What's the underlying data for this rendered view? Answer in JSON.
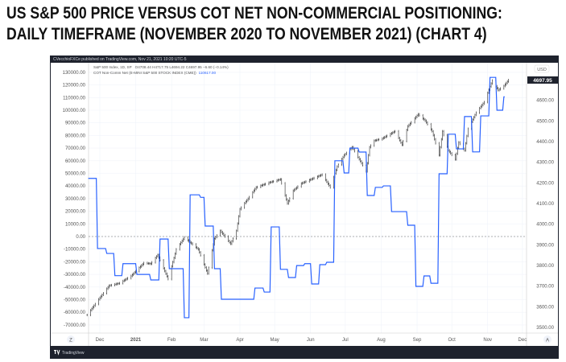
{
  "title_line1": "US S&P 500 PRICE VERSUS COT NET NON-COMMERCIAL POSITIONING:",
  "title_line2": "DAILY TIMEFRAME (NOVEMBER 2020 TO NOVEMBER 2021) (CHART 4)",
  "published": "CVecchioFXCe published on TradingView.com, Nov 21, 2021 10:20 UTC-5",
  "legend": {
    "price_name": "S&P 500 Index, 1D, SP",
    "price_ohlc": "O4708.44 H4717.75 L4694.22 C4697.95 −6.60 (−0.14%)",
    "cot_name": "COT Non-Comm Net (E-MINI S&P 500 STOCK INDEX (CME))",
    "cot_value": "110617.00"
  },
  "currency": "USD",
  "last_price_label": "4697.95",
  "footer_brand": "TradingView",
  "corner_left": "Z",
  "corner_right": "A",
  "colors": {
    "cot_line": "#2962ff",
    "price_bars": "#222222",
    "frame": "#1e222d",
    "last_price_badge": "#1e222d"
  },
  "chart_data": {
    "type": "line",
    "x_ticks": [
      "Dec",
      "2021",
      "Feb",
      "Mar",
      "Apr",
      "May",
      "Jun",
      "Jul",
      "Aug",
      "Sep",
      "Oct",
      "Nov",
      "Dec"
    ],
    "left_axis": {
      "ylim": [
        -70000,
        130000
      ],
      "ticks": [
        "130000.00",
        "120000.00",
        "110000.00",
        "100000.00",
        "90000.00",
        "80000.00",
        "70000.00",
        "60000.00",
        "50000.00",
        "40000.00",
        "30000.00",
        "20000.00",
        "10000.00",
        "0.00",
        "-10000.00",
        "-20000.00",
        "-30000.00",
        "-40000.00",
        "-50000.00",
        "-60000.00",
        "-70000.00"
      ],
      "zero_line": "dashed"
    },
    "right_axis": {
      "label": "USD",
      "ylim": [
        3500,
        4750
      ],
      "ticks": [
        "4600.00",
        "4500.00",
        "4400.00",
        "4300.00",
        "4200.00",
        "4100.00",
        "4000.00",
        "3900.00",
        "3800.00",
        "3700.00",
        "3600.00",
        "3500.00"
      ]
    },
    "grid": true,
    "series": [
      {
        "name": "COT Non-Comm Net (E-MINI S&P 500 STOCK INDEX (CME))",
        "style": "step",
        "axis": "left",
        "points": [
          [
            "2020-11-21",
            46000
          ],
          [
            "2020-11-29",
            -9500
          ],
          [
            "2020-12-07",
            -13400
          ],
          [
            "2020-12-14",
            -31000
          ],
          [
            "2020-12-21",
            -21500
          ],
          [
            "2021-01-02",
            -30000
          ],
          [
            "2021-01-14",
            -34400
          ],
          [
            "2021-01-22",
            -2000
          ],
          [
            "2021-01-30",
            -25500
          ],
          [
            "2021-02-12",
            -64300
          ],
          [
            "2021-02-17",
            33000
          ],
          [
            "2021-02-26",
            31000
          ],
          [
            "2021-03-02",
            8300
          ],
          [
            "2021-03-10",
            -25500
          ],
          [
            "2021-03-16",
            -49700
          ],
          [
            "2021-04-14",
            -40800
          ],
          [
            "2021-04-22",
            -44000
          ],
          [
            "2021-04-28",
            7600
          ],
          [
            "2021-05-06",
            -26000
          ],
          [
            "2021-05-13",
            -32500
          ],
          [
            "2021-05-20",
            -23000
          ],
          [
            "2021-05-27",
            -21500
          ],
          [
            "2021-06-02",
            -37600
          ],
          [
            "2021-06-09",
            -22300
          ],
          [
            "2021-06-15",
            -20400
          ],
          [
            "2021-06-22",
            60000
          ],
          [
            "2021-06-30",
            50300
          ],
          [
            "2021-07-05",
            70000
          ],
          [
            "2021-07-13",
            66900
          ],
          [
            "2021-07-20",
            32500
          ],
          [
            "2021-07-27",
            38900
          ],
          [
            "2021-08-03",
            40100
          ],
          [
            "2021-08-10",
            19700
          ],
          [
            "2021-08-24",
            8900
          ],
          [
            "2021-08-31",
            -39500
          ],
          [
            "2021-09-07",
            -31200
          ],
          [
            "2021-09-13",
            -37000
          ],
          [
            "2021-09-20",
            49700
          ],
          [
            "2021-09-28",
            81000
          ],
          [
            "2021-10-05",
            69400
          ],
          [
            "2021-10-12",
            95000
          ],
          [
            "2021-10-19",
            67000
          ],
          [
            "2021-10-26",
            95500
          ],
          [
            "2021-11-03",
            126000
          ],
          [
            "2021-11-09",
            100000
          ],
          [
            "2021-11-15",
            110617
          ]
        ]
      },
      {
        "name": "S&P 500 Index, 1D, SP",
        "style": "ohlc-bars",
        "axis": "right",
        "closes": [
          [
            "2020-11-20",
            3560
          ],
          [
            "2020-11-30",
            3636
          ],
          [
            "2020-12-09",
            3702
          ],
          [
            "2020-12-18",
            3714
          ],
          [
            "2020-12-28",
            3749
          ],
          [
            "2021-01-08",
            3812
          ],
          [
            "2021-01-14",
            3808
          ],
          [
            "2021-01-20",
            3851
          ],
          [
            "2021-01-29",
            3734
          ],
          [
            "2021-02-05",
            3878
          ],
          [
            "2021-02-12",
            3936
          ],
          [
            "2021-02-24",
            3878
          ],
          [
            "2021-03-04",
            3761
          ],
          [
            "2021-03-10",
            3930
          ],
          [
            "2021-03-15",
            3968
          ],
          [
            "2021-03-24",
            3905
          ],
          [
            "2021-03-29",
            3968
          ],
          [
            "2021-04-01",
            4073
          ],
          [
            "2021-04-08",
            4123
          ],
          [
            "2021-04-15",
            4178
          ],
          [
            "2021-04-26",
            4201
          ],
          [
            "2021-05-06",
            4217
          ],
          [
            "2021-05-12",
            4100
          ],
          [
            "2021-05-17",
            4162
          ],
          [
            "2021-05-24",
            4197
          ],
          [
            "2021-06-03",
            4221
          ],
          [
            "2021-06-11",
            4240
          ],
          [
            "2021-06-18",
            4178
          ],
          [
            "2021-06-24",
            4279
          ],
          [
            "2021-06-30",
            4334
          ],
          [
            "2021-07-07",
            4373
          ],
          [
            "2021-07-19",
            4256
          ],
          [
            "2021-07-22",
            4373
          ],
          [
            "2021-07-26",
            4404
          ],
          [
            "2021-08-02",
            4415
          ],
          [
            "2021-08-13",
            4450
          ],
          [
            "2021-08-19",
            4384
          ],
          [
            "2021-08-24",
            4474
          ],
          [
            "2021-09-02",
            4532
          ],
          [
            "2021-09-08",
            4501
          ],
          [
            "2021-09-14",
            4450
          ],
          [
            "2021-09-20",
            4334
          ],
          [
            "2021-09-23",
            4450
          ],
          [
            "2021-09-28",
            4357
          ],
          [
            "2021-10-04",
            4314
          ],
          [
            "2021-10-07",
            4396
          ],
          [
            "2021-10-12",
            4357
          ],
          [
            "2021-10-15",
            4462
          ],
          [
            "2021-10-22",
            4540
          ],
          [
            "2021-10-29",
            4591
          ],
          [
            "2021-11-05",
            4696
          ],
          [
            "2021-11-10",
            4649
          ],
          [
            "2021-11-15",
            4669
          ],
          [
            "2021-11-19",
            4697.95
          ]
        ]
      }
    ]
  }
}
